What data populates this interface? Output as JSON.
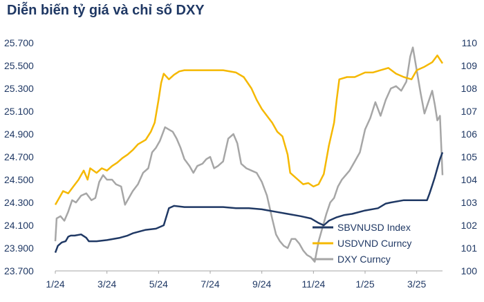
{
  "chart_data": {
    "type": "line",
    "title": "Diễn biến tỷ giá và chỉ số DXY",
    "x_ticks": [
      "1/24",
      "3/24",
      "5/24",
      "7/24",
      "9/24",
      "11/24",
      "1/25",
      "3/25"
    ],
    "x_range": [
      0,
      15.0
    ],
    "y_left": {
      "range": [
        23700,
        25700
      ],
      "ticks": [
        23700,
        23900,
        24100,
        24300,
        24500,
        24700,
        24900,
        25100,
        25300,
        25500,
        25700
      ],
      "tick_labels": [
        "23.700",
        "23.900",
        "24.100",
        "24.300",
        "24.500",
        "24.700",
        "24.900",
        "25.100",
        "25.300",
        "25.500",
        "25.700"
      ]
    },
    "y_right": {
      "range": [
        100,
        110
      ],
      "ticks": [
        100,
        101,
        102,
        103,
        104,
        105,
        106,
        107,
        108,
        109,
        110
      ],
      "tick_labels": [
        "100",
        "101",
        "102",
        "103",
        "104",
        "105",
        "106",
        "107",
        "108",
        "109",
        "110"
      ]
    },
    "legend_position": "bottom-right",
    "grid": false,
    "series": [
      {
        "name": "SBVNUSD Index",
        "axis": "left",
        "color": "#1f3864",
        "points": [
          [
            0,
            23860
          ],
          [
            0.1,
            23920
          ],
          [
            0.25,
            23950
          ],
          [
            0.4,
            23960
          ],
          [
            0.5,
            24000
          ],
          [
            0.6,
            24010
          ],
          [
            0.75,
            24010
          ],
          [
            1.0,
            24020
          ],
          [
            1.2,
            23990
          ],
          [
            1.3,
            23960
          ],
          [
            1.6,
            23960
          ],
          [
            2.0,
            23970
          ],
          [
            2.5,
            23990
          ],
          [
            2.8,
            24010
          ],
          [
            3.0,
            24030
          ],
          [
            3.5,
            24060
          ],
          [
            3.9,
            24070
          ],
          [
            4.2,
            24100
          ],
          [
            4.4,
            24250
          ],
          [
            4.6,
            24270
          ],
          [
            5.0,
            24260
          ],
          [
            5.5,
            24260
          ],
          [
            6.0,
            24260
          ],
          [
            6.5,
            24260
          ],
          [
            7.0,
            24250
          ],
          [
            7.5,
            24250
          ],
          [
            8.0,
            24240
          ],
          [
            8.5,
            24220
          ],
          [
            9.0,
            24200
          ],
          [
            9.5,
            24180
          ],
          [
            9.9,
            24160
          ],
          [
            10.2,
            24120
          ],
          [
            10.4,
            24100
          ],
          [
            10.6,
            24140
          ],
          [
            10.9,
            24170
          ],
          [
            11.2,
            24190
          ],
          [
            11.5,
            24200
          ],
          [
            12.0,
            24230
          ],
          [
            12.5,
            24250
          ],
          [
            12.8,
            24290
          ],
          [
            13.0,
            24300
          ],
          [
            13.5,
            24320
          ],
          [
            14.0,
            24320
          ],
          [
            14.4,
            24320
          ],
          [
            14.5,
            24380
          ],
          [
            14.6,
            24450
          ],
          [
            14.7,
            24520
          ],
          [
            14.8,
            24600
          ],
          [
            14.9,
            24680
          ],
          [
            15.0,
            24740
          ]
        ]
      },
      {
        "name": "USDVND Curncy",
        "axis": "left",
        "color": "#f5b800",
        "points": [
          [
            0,
            24280
          ],
          [
            0.2,
            24360
          ],
          [
            0.3,
            24400
          ],
          [
            0.5,
            24380
          ],
          [
            0.7,
            24440
          ],
          [
            0.9,
            24500
          ],
          [
            1.0,
            24540
          ],
          [
            1.1,
            24580
          ],
          [
            1.25,
            24500
          ],
          [
            1.35,
            24600
          ],
          [
            1.6,
            24560
          ],
          [
            1.8,
            24600
          ],
          [
            2.0,
            24580
          ],
          [
            2.2,
            24620
          ],
          [
            2.4,
            24650
          ],
          [
            2.6,
            24690
          ],
          [
            2.8,
            24720
          ],
          [
            3.0,
            24760
          ],
          [
            3.2,
            24810
          ],
          [
            3.5,
            24850
          ],
          [
            3.7,
            24920
          ],
          [
            3.85,
            25000
          ],
          [
            4.0,
            25200
          ],
          [
            4.1,
            25350
          ],
          [
            4.2,
            25430
          ],
          [
            4.4,
            25380
          ],
          [
            4.6,
            25420
          ],
          [
            4.8,
            25450
          ],
          [
            5.0,
            25460
          ],
          [
            5.5,
            25460
          ],
          [
            6.0,
            25460
          ],
          [
            6.5,
            25460
          ],
          [
            7.0,
            25440
          ],
          [
            7.3,
            25400
          ],
          [
            7.6,
            25300
          ],
          [
            7.8,
            25200
          ],
          [
            8.0,
            25120
          ],
          [
            8.2,
            25060
          ],
          [
            8.4,
            25000
          ],
          [
            8.6,
            24920
          ],
          [
            8.8,
            24880
          ],
          [
            9.0,
            24720
          ],
          [
            9.1,
            24560
          ],
          [
            9.4,
            24500
          ],
          [
            9.6,
            24460
          ],
          [
            9.8,
            24470
          ],
          [
            10.0,
            24440
          ],
          [
            10.2,
            24460
          ],
          [
            10.4,
            24550
          ],
          [
            10.6,
            24800
          ],
          [
            10.8,
            25000
          ],
          [
            10.9,
            25200
          ],
          [
            11.0,
            25380
          ],
          [
            11.3,
            25400
          ],
          [
            11.6,
            25400
          ],
          [
            12.0,
            25440
          ],
          [
            12.3,
            25440
          ],
          [
            12.6,
            25460
          ],
          [
            12.9,
            25480
          ],
          [
            13.2,
            25430
          ],
          [
            13.5,
            25400
          ],
          [
            13.8,
            25380
          ],
          [
            14.0,
            25460
          ],
          [
            14.3,
            25490
          ],
          [
            14.6,
            25530
          ],
          [
            14.8,
            25590
          ],
          [
            15.0,
            25520
          ]
        ]
      },
      {
        "name": "DXY Curncy",
        "axis": "right",
        "color": "#a6a6a6",
        "points": [
          [
            0,
            101.3
          ],
          [
            0.05,
            102.3
          ],
          [
            0.2,
            102.4
          ],
          [
            0.35,
            102.2
          ],
          [
            0.5,
            102.6
          ],
          [
            0.65,
            103.1
          ],
          [
            0.8,
            103.0
          ],
          [
            1.0,
            103.3
          ],
          [
            1.2,
            103.4
          ],
          [
            1.4,
            103.1
          ],
          [
            1.55,
            103.2
          ],
          [
            1.7,
            103.9
          ],
          [
            1.85,
            104.2
          ],
          [
            2.0,
            104.0
          ],
          [
            2.2,
            104.0
          ],
          [
            2.35,
            103.8
          ],
          [
            2.55,
            103.7
          ],
          [
            2.7,
            102.9
          ],
          [
            2.85,
            103.2
          ],
          [
            3.0,
            103.5
          ],
          [
            3.2,
            103.8
          ],
          [
            3.4,
            104.3
          ],
          [
            3.6,
            104.5
          ],
          [
            3.75,
            105.2
          ],
          [
            3.9,
            105.4
          ],
          [
            4.05,
            105.7
          ],
          [
            4.25,
            106.3
          ],
          [
            4.4,
            106.2
          ],
          [
            4.55,
            106.1
          ],
          [
            4.7,
            105.8
          ],
          [
            4.85,
            105.4
          ],
          [
            5.0,
            104.9
          ],
          [
            5.2,
            104.6
          ],
          [
            5.35,
            104.3
          ],
          [
            5.5,
            104.6
          ],
          [
            5.7,
            104.7
          ],
          [
            5.85,
            104.9
          ],
          [
            6.0,
            105.0
          ],
          [
            6.15,
            104.5
          ],
          [
            6.3,
            104.6
          ],
          [
            6.5,
            104.8
          ],
          [
            6.7,
            105.8
          ],
          [
            6.9,
            106.0
          ],
          [
            7.05,
            105.6
          ],
          [
            7.2,
            104.7
          ],
          [
            7.4,
            104.5
          ],
          [
            7.6,
            104.4
          ],
          [
            7.8,
            104.3
          ],
          [
            8.0,
            103.9
          ],
          [
            8.2,
            103.3
          ],
          [
            8.4,
            102.3
          ],
          [
            8.55,
            101.6
          ],
          [
            8.7,
            101.3
          ],
          [
            8.85,
            101.1
          ],
          [
            9.0,
            101.0
          ],
          [
            9.15,
            101.4
          ],
          [
            9.3,
            101.4
          ],
          [
            9.45,
            101.2
          ],
          [
            9.6,
            100.9
          ],
          [
            9.75,
            100.7
          ],
          [
            9.9,
            100.6
          ],
          [
            10.05,
            100.4
          ],
          [
            10.2,
            101.3
          ],
          [
            10.35,
            101.9
          ],
          [
            10.5,
            102.5
          ],
          [
            10.65,
            103.0
          ],
          [
            10.8,
            103.2
          ],
          [
            10.95,
            103.7
          ],
          [
            11.1,
            104.0
          ],
          [
            11.25,
            104.2
          ],
          [
            11.4,
            104.4
          ],
          [
            11.6,
            104.8
          ],
          [
            11.8,
            105.2
          ],
          [
            12.0,
            106.2
          ],
          [
            12.2,
            106.7
          ],
          [
            12.4,
            107.4
          ],
          [
            12.6,
            106.8
          ],
          [
            12.8,
            107.5
          ],
          [
            13.0,
            108.0
          ],
          [
            13.2,
            108.1
          ],
          [
            13.4,
            107.9
          ],
          [
            13.6,
            108.3
          ],
          [
            13.75,
            109.4
          ],
          [
            13.85,
            109.8
          ],
          [
            14.0,
            108.8
          ],
          [
            14.15,
            107.8
          ],
          [
            14.3,
            106.9
          ],
          [
            14.45,
            107.4
          ],
          [
            14.6,
            107.9
          ],
          [
            14.7,
            107.3
          ],
          [
            14.8,
            106.6
          ],
          [
            14.9,
            106.8
          ],
          [
            15.0,
            104.2
          ]
        ]
      }
    ]
  }
}
